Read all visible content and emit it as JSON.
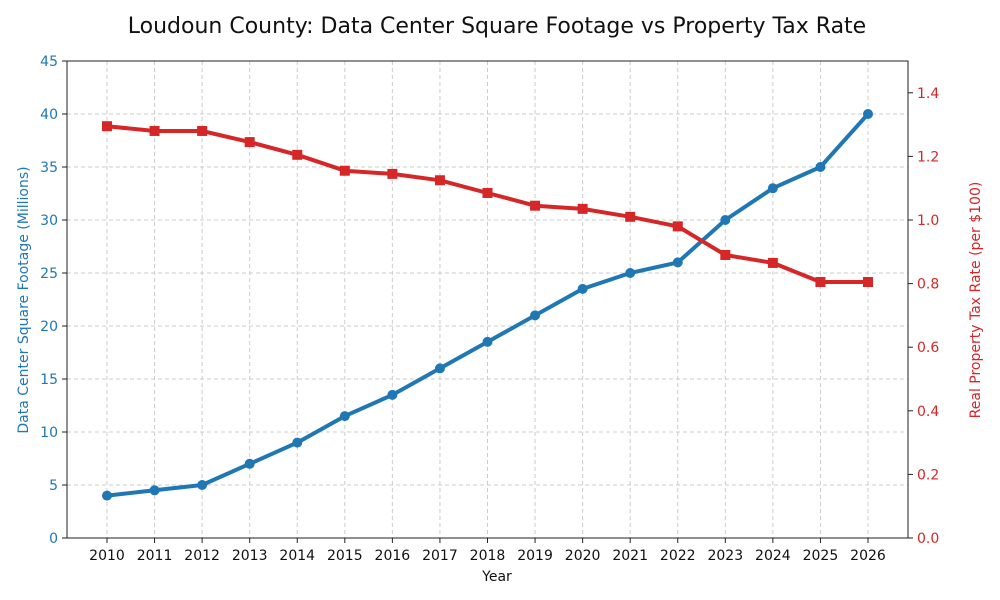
{
  "chart_data": {
    "type": "line",
    "title": "Loudoun County: Data Center Square Footage vs Property Tax Rate",
    "xlabel": "Year",
    "ylabel_left": "Data Center Square Footage (Millions)",
    "ylabel_right": "Real Property Tax Rate (per $100)",
    "x": [
      "2010",
      "2011",
      "2012",
      "2013",
      "2014",
      "2015",
      "2016",
      "2017",
      "2018",
      "2019",
      "2020",
      "2021",
      "2022",
      "2023",
      "2024",
      "2025",
      "2026"
    ],
    "ylim_left": [
      0,
      45
    ],
    "yticks_left": [
      "0",
      "5",
      "10",
      "15",
      "20",
      "25",
      "30",
      "35",
      "40",
      "45"
    ],
    "ylim_right": [
      0,
      1.5
    ],
    "yticks_right": [
      "0.0",
      "0.2",
      "0.4",
      "0.6",
      "0.8",
      "1.0",
      "1.2",
      "1.4"
    ],
    "grid": true,
    "series": [
      {
        "name": "Data Center Square Footage (Millions)",
        "axis": "left",
        "color": "#1f77b4",
        "marker": "circle",
        "values": [
          4,
          4.5,
          5,
          7,
          9,
          11.5,
          13.5,
          16,
          18.5,
          21,
          23.5,
          25,
          26,
          30,
          33,
          35,
          40
        ]
      },
      {
        "name": "Real Property Tax Rate (per $100)",
        "axis": "right",
        "color": "#d62728",
        "marker": "square",
        "values": [
          1.295,
          1.28,
          1.28,
          1.245,
          1.205,
          1.155,
          1.145,
          1.125,
          1.085,
          1.045,
          1.035,
          1.01,
          0.98,
          0.89,
          0.865,
          0.805,
          0.805
        ]
      }
    ]
  }
}
